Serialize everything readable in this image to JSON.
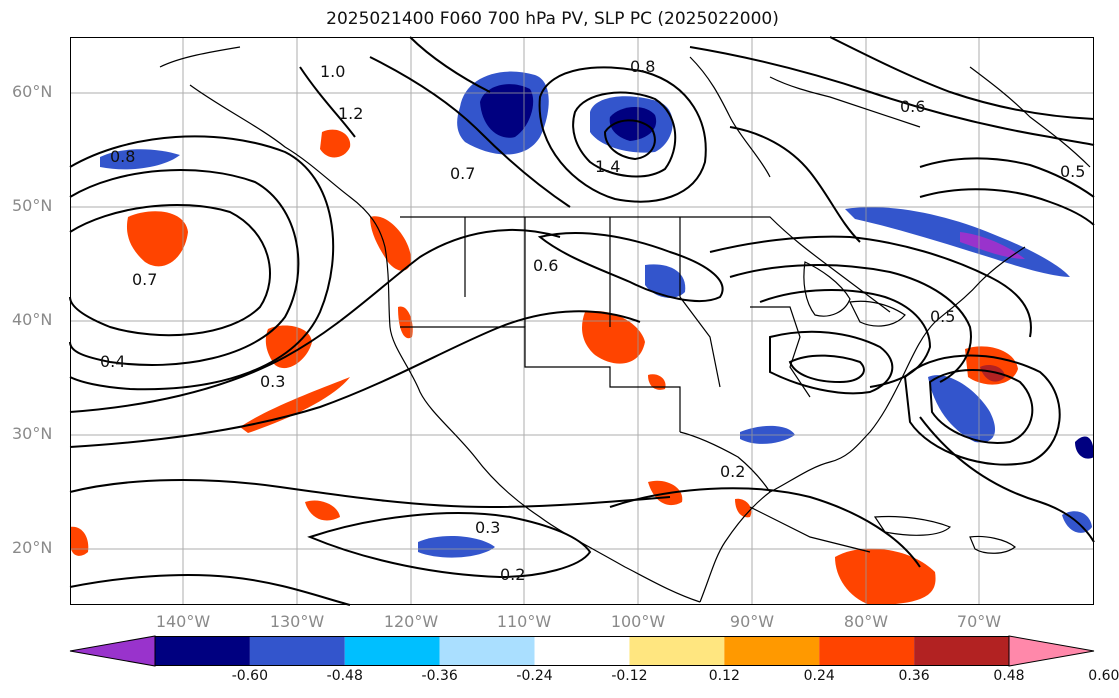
{
  "title": "2025021400 F060 700 hPa PV, SLP PC (2025022000)",
  "lat_labels": [
    "60°N",
    "50°N",
    "40°N",
    "30°N",
    "20°N"
  ],
  "lon_labels": [
    "140°W",
    "130°W",
    "120°W",
    "110°W",
    "100°W",
    "90°W",
    "80°W",
    "70°W"
  ],
  "contour_labels": [
    "1.0",
    "1.2",
    "0.8",
    "0.7",
    "0.4",
    "0.3",
    "0.2",
    "0.6",
    "0.5",
    "1.4",
    "0.8",
    "0.7",
    "0.6",
    "0.5",
    "0.3",
    "0.2"
  ],
  "colorbar": {
    "ticks": [
      "-0.60",
      "-0.48",
      "-0.36",
      "-0.24",
      "-0.12",
      "0.12",
      "0.24",
      "0.36",
      "0.48",
      "0.60"
    ],
    "colors": [
      "#9933cc",
      "#000080",
      "#3355cc",
      "#00bfff",
      "#aadfff",
      "#ffffff",
      "#ffe680",
      "#ff9900",
      "#ff4400",
      "#b22222",
      "#ff88aa"
    ]
  },
  "colors": {
    "contour": "#000000",
    "grid": "#999999",
    "coast": "#000000"
  }
}
